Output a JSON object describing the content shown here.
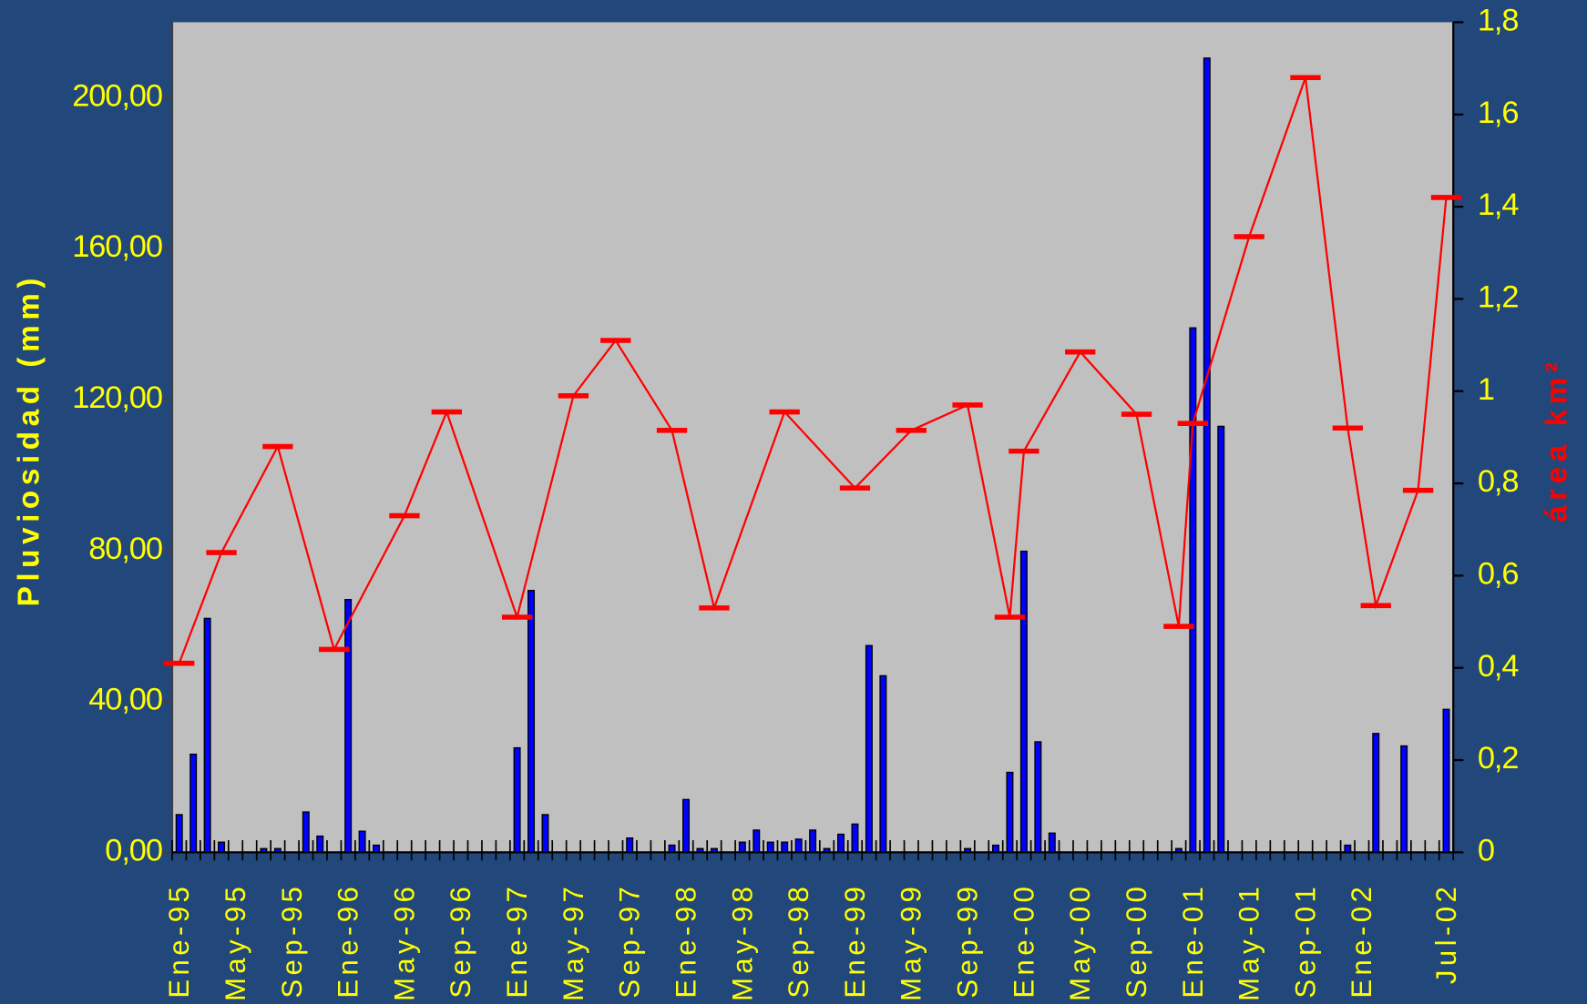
{
  "chart_data": {
    "type": "bar",
    "y_label": "Pluviosidad (mm)",
    "y2_label": "área km²",
    "categories": [
      "Ene-95",
      null,
      null,
      null,
      "May-95",
      null,
      null,
      null,
      "Sep-95",
      null,
      null,
      null,
      "Ene-96",
      null,
      null,
      null,
      "May-96",
      null,
      null,
      null,
      "Sep-96",
      null,
      null,
      null,
      "Ene-97",
      null,
      null,
      null,
      "May-97",
      null,
      null,
      null,
      "Sep-97",
      null,
      null,
      null,
      "Ene-98",
      null,
      null,
      null,
      "May-98",
      null,
      null,
      null,
      "Sep-98",
      null,
      null,
      null,
      "Ene-99",
      null,
      null,
      null,
      "May-99",
      null,
      null,
      null,
      "Sep-99",
      null,
      null,
      null,
      "Ene-00",
      null,
      null,
      null,
      "May-00",
      null,
      null,
      null,
      "Sep-00",
      null,
      null,
      null,
      "Ene-01",
      null,
      null,
      null,
      "May-01",
      null,
      null,
      null,
      "Sep-01",
      null,
      null,
      null,
      "Ene-02",
      null,
      null,
      null,
      null,
      null,
      "Jul-02"
    ],
    "series": [
      {
        "type": "bar",
        "color": "#0000ff",
        "axis": "y",
        "values": [
          10,
          26,
          62,
          2.7,
          0,
          0,
          1,
          1,
          0,
          10.7,
          4.3,
          0,
          67,
          5.6,
          1.9,
          0,
          0,
          0,
          0,
          0,
          0,
          0,
          0,
          0,
          27.7,
          69.4,
          10,
          0,
          0,
          0,
          0,
          0,
          3.8,
          0,
          0,
          1.9,
          14,
          1,
          1,
          0,
          2.7,
          5.9,
          2.7,
          2.7,
          3.5,
          5.9,
          1,
          4.8,
          7.5,
          54.8,
          46.8,
          0,
          0,
          0,
          0,
          0,
          1,
          0,
          1.9,
          21.2,
          79.8,
          29.3,
          5.1,
          0,
          0,
          0,
          0,
          0,
          0,
          0,
          0,
          1,
          139,
          210.5,
          112.9,
          0,
          0,
          0,
          0,
          0,
          0,
          0,
          0,
          1.9,
          0,
          31.5,
          0,
          28.2,
          0,
          0,
          37.9
        ]
      },
      {
        "type": "line",
        "color": "#ff0000",
        "axis": "y2",
        "connect_gaps": true,
        "values": [
          0.41,
          null,
          null,
          0.65,
          null,
          null,
          null,
          0.88,
          null,
          null,
          null,
          0.44,
          null,
          null,
          null,
          null,
          0.73,
          null,
          null,
          0.955,
          null,
          null,
          null,
          null,
          0.51,
          null,
          null,
          null,
          0.99,
          null,
          null,
          1.11,
          null,
          null,
          null,
          0.915,
          null,
          null,
          0.53,
          null,
          null,
          null,
          null,
          0.955,
          null,
          null,
          null,
          null,
          0.79,
          null,
          null,
          null,
          0.915,
          null,
          null,
          null,
          0.97,
          null,
          null,
          0.51,
          0.87,
          null,
          null,
          null,
          1.085,
          null,
          null,
          null,
          0.95,
          null,
          null,
          0.49,
          0.93,
          null,
          null,
          null,
          1.335,
          null,
          null,
          null,
          1.68,
          null,
          null,
          0.92,
          null,
          0.535,
          null,
          null,
          0.785,
          null,
          1.42
        ]
      }
    ],
    "ylim": [
      0,
      220
    ],
    "yticks": [
      {
        "value": 0,
        "label": "0,00"
      },
      {
        "value": 40,
        "label": "40,00"
      },
      {
        "value": 80,
        "label": "80,00"
      },
      {
        "value": 120,
        "label": "120,00"
      },
      {
        "value": 160,
        "label": "160,00"
      },
      {
        "value": 200,
        "label": "200,00"
      }
    ],
    "y2lim": [
      0,
      1.8
    ],
    "y2ticks": [
      0,
      {
        "value": 0.2,
        "label": "0,2"
      },
      {
        "value": 0.4,
        "label": "0,4"
      },
      {
        "value": 0.6,
        "label": "0,6"
      },
      {
        "value": 0.8,
        "label": "0,8"
      },
      1,
      {
        "value": 1.2,
        "label": "1,2"
      },
      {
        "value": 1.4,
        "label": "1,4"
      },
      {
        "value": 1.6,
        "label": "1,6"
      },
      {
        "value": 1.8,
        "label": "1,8"
      }
    ],
    "grid": false
  }
}
